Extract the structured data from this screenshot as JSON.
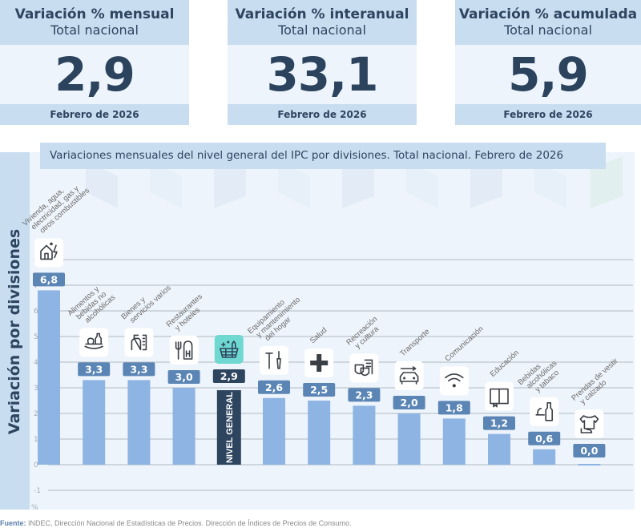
{
  "kpis": [
    {
      "title": "Variación % mensual",
      "subtitle": "Total nacional",
      "value": "2,9",
      "period": "Febrero de 2026"
    },
    {
      "title": "Variación % interanual",
      "subtitle": "Total nacional",
      "value": "33,1",
      "period": "Febrero de 2026"
    },
    {
      "title": "Variación % acumulada",
      "subtitle": "Total nacional",
      "value": "5,9",
      "period": "Febrero de 2026"
    }
  ],
  "colors": {
    "bar": "#8db4e2",
    "value_badge": "#5a85b5",
    "general_bar": "#2e4560",
    "general_icon_bg": "#6fd8d0",
    "header_band": "#c9ddf0",
    "plot_bg": "#eef4fb",
    "text_dark": "#2e4560"
  },
  "chart_data": {
    "type": "bar",
    "title": "Variaciones mensuales del nivel general del IPC por divisiones. Total nacional. Febrero de 2026",
    "xlabel": "",
    "ylabel": "Variación por divisiones",
    "yunit": "%",
    "ylim": [
      -1,
      8
    ],
    "yticks": [
      -1,
      0,
      1,
      2,
      3,
      4,
      5,
      6,
      7,
      8
    ],
    "grid": true,
    "categories": [
      {
        "label": [
          "Vivienda, agua,",
          "electricidad, gas y",
          "otros combustibles"
        ],
        "icon": "house-energy-icon",
        "value": 6.8,
        "display": "6,8",
        "general": false
      },
      {
        "label": [
          "Alimentos y",
          "bebidas no",
          "alcohólicas"
        ],
        "icon": "food-bottle-icon",
        "value": 3.3,
        "display": "3,3",
        "general": false
      },
      {
        "label": [
          "Bienes y",
          "servicios varios"
        ],
        "icon": "soap-comb-icon",
        "value": 3.3,
        "display": "3,3",
        "general": false
      },
      {
        "label": [
          "Restaurantes",
          "y hoteles"
        ],
        "icon": "fork-hotel-icon",
        "value": 3.0,
        "display": "3,0",
        "general": false
      },
      {
        "label": [],
        "icon": "shopping-basket-icon",
        "value": 2.9,
        "display": "2,9",
        "general": true,
        "bar_text": "NIVEL GENERAL"
      },
      {
        "label": [
          "Equipamiento",
          "y mantenimiento",
          "del hogar"
        ],
        "icon": "tools-icon",
        "value": 2.6,
        "display": "2,6",
        "general": false
      },
      {
        "label": [
          "Salud"
        ],
        "icon": "health-cross-icon",
        "value": 2.5,
        "display": "2,5",
        "general": false
      },
      {
        "label": [
          "Recreación",
          "y cultura"
        ],
        "icon": "theater-masks-icon",
        "value": 2.3,
        "display": "2,3",
        "general": false
      },
      {
        "label": [
          "Transporte"
        ],
        "icon": "car-wrench-icon",
        "value": 2.0,
        "display": "2,0",
        "general": false
      },
      {
        "label": [
          "Comunicación"
        ],
        "icon": "wifi-icon",
        "value": 1.8,
        "display": "1,8",
        "general": false
      },
      {
        "label": [
          "Educación"
        ],
        "icon": "book-icon",
        "value": 1.2,
        "display": "1,2",
        "general": false
      },
      {
        "label": [
          "Bebidas",
          "alcohólicas",
          "y tabaco"
        ],
        "icon": "wine-bottle-icon",
        "value": 0.6,
        "display": "0,6",
        "general": false
      },
      {
        "label": [
          "Prendas de vestir",
          "y calzado"
        ],
        "icon": "clothing-shoe-icon",
        "value": 0.0,
        "display": "0,0",
        "general": false
      }
    ]
  },
  "source": {
    "label": "Fuente:",
    "text": " INDEC, Dirección Nacional de Estadísticas de Precios. Dirección de Índices de Precios de Consumo."
  }
}
